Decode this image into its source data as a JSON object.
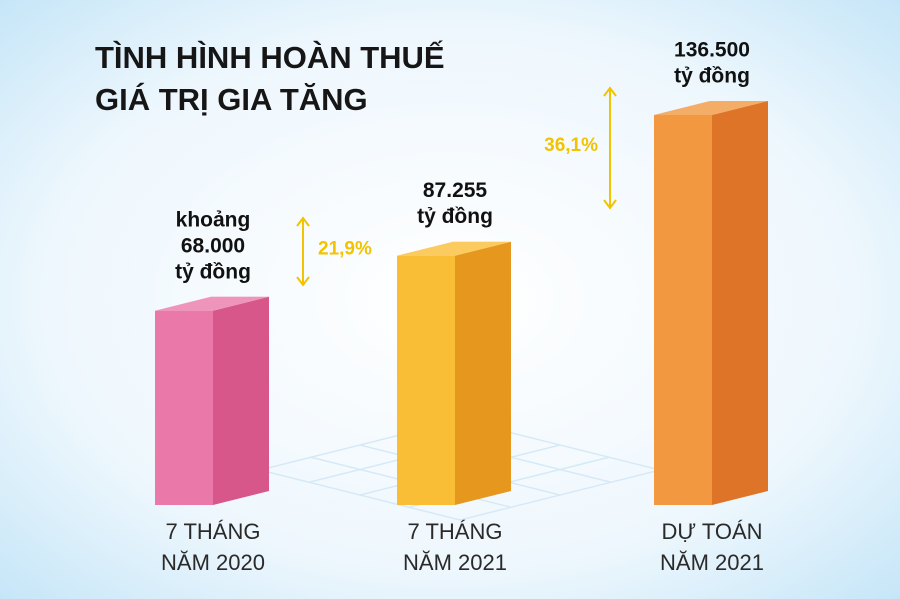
{
  "chart_data": {
    "type": "bar",
    "title": [
      "TÌNH HÌNH HOÀN THUẾ",
      "GIÁ TRỊ GIA TĂNG"
    ],
    "categories": [
      [
        "7 THÁNG",
        "NĂM 2020"
      ],
      [
        "7 THÁNG",
        "NĂM 2021"
      ],
      [
        "DỰ TOÁN",
        "NĂM 2021"
      ]
    ],
    "values": [
      68000,
      87255,
      136500
    ],
    "value_labels": [
      [
        "khoảng",
        "68.000",
        "tỷ đồng"
      ],
      [
        "87.255",
        "tỷ đồng"
      ],
      [
        "136.500",
        "tỷ đồng"
      ]
    ],
    "colors": [
      "#e8679f",
      "#f9b51a",
      "#f08a26"
    ],
    "annotations": [
      {
        "text": "21,9%",
        "color": "#f2c300"
      },
      {
        "text": "36,1%",
        "color": "#f2c300"
      }
    ]
  }
}
